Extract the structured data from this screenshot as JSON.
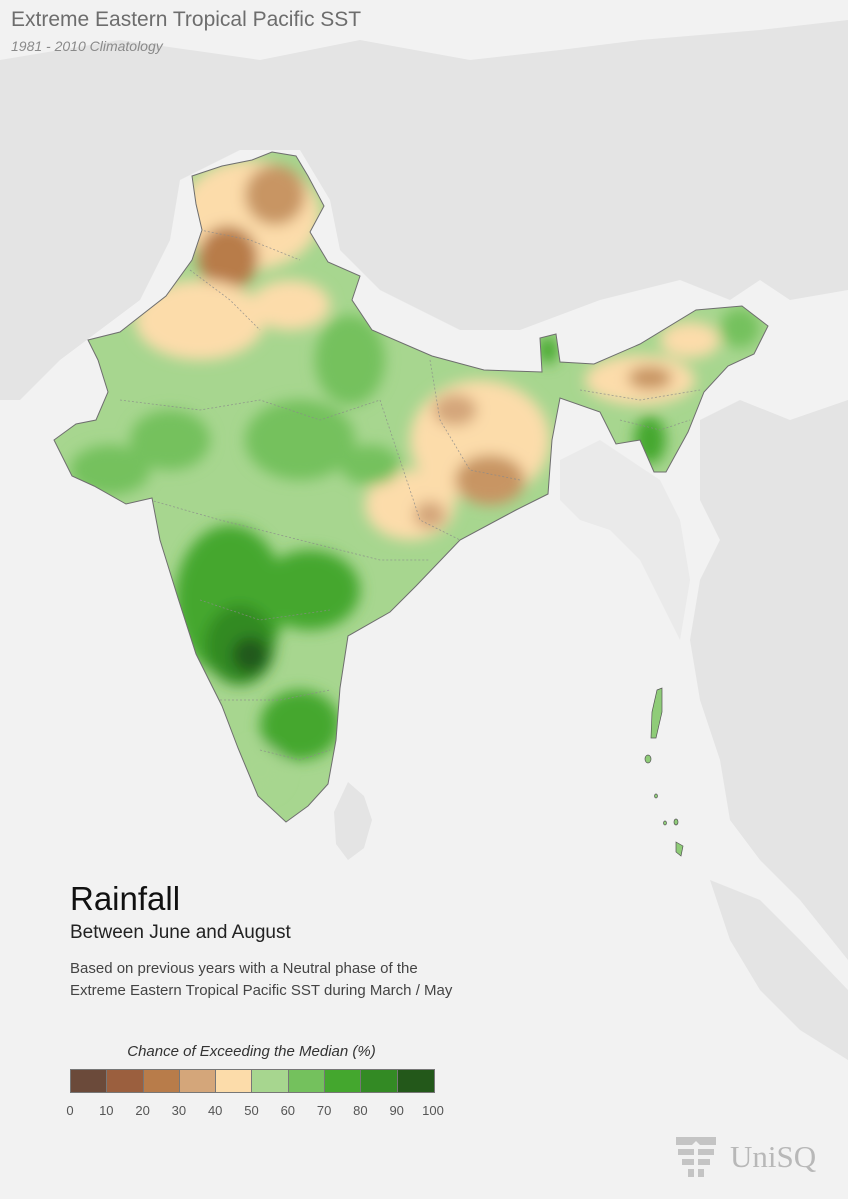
{
  "header": {
    "title": "Extreme Eastern Tropical Pacific SST",
    "subtitle": "1981 - 2010 Climatology"
  },
  "variable": {
    "title": "Rainfall",
    "period": "Between June and August",
    "description_line1": "Based on previous years with a Neutral phase of the",
    "description_line2": "Extreme Eastern Tropical Pacific SST during March / May"
  },
  "legend": {
    "title": "Chance of Exceeding the Median (%)",
    "colors": [
      "#6b4a3a",
      "#9b5f3e",
      "#b87c4a",
      "#d4a67a",
      "#fcdcaa",
      "#a7d68f",
      "#74c15d",
      "#44a72e",
      "#338a24",
      "#23581a"
    ],
    "ticks": [
      "0",
      "10",
      "20",
      "30",
      "40",
      "50",
      "60",
      "70",
      "80",
      "90",
      "100"
    ]
  },
  "logo": {
    "text": "UniSQ",
    "icon": "unisq-logo-icon"
  },
  "map": {
    "region": "India",
    "background_color": "#f2f2f2",
    "land_color": "#e3e3e3"
  }
}
